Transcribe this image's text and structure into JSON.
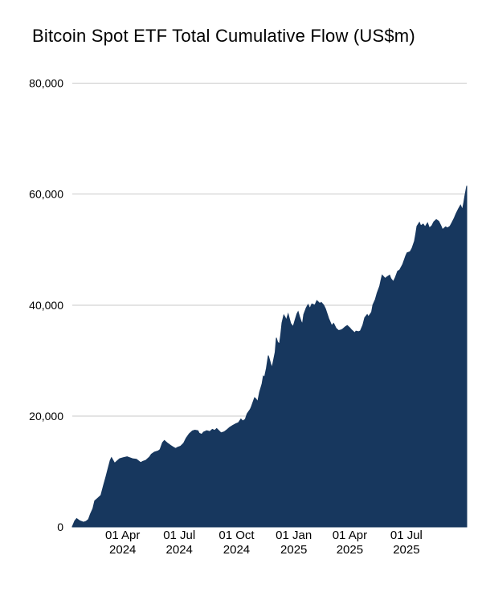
{
  "chart": {
    "title": "Bitcoin Spot ETF Total Cumulative Flow (US$m)"
  },
  "style": {
    "area_fill": "#17375E",
    "grid_color": "#C9C9C9",
    "text_color": "#000000",
    "background": "#FFFFFF"
  },
  "chart_data": {
    "type": "area",
    "title": "Bitcoin Spot ETF Total Cumulative Flow (US$m)",
    "xlabel": "",
    "ylabel": "",
    "legend": "none",
    "grid": "horizontal",
    "ylim": [
      0,
      80000
    ],
    "y_ticks": [
      0,
      20000,
      40000,
      60000,
      80000
    ],
    "y_tick_labels": [
      "0",
      "20,000",
      "40,000",
      "60,000",
      "80,000"
    ],
    "x_domain": [
      "2024-01-11",
      "2025-10-06"
    ],
    "x_ticks": [
      {
        "date": "2024-04-01",
        "label_line1": "01 Apr",
        "label_line2": "2024"
      },
      {
        "date": "2024-07-01",
        "label_line1": "01 Jul",
        "label_line2": "2024"
      },
      {
        "date": "2024-10-01",
        "label_line1": "01 Oct",
        "label_line2": "2024"
      },
      {
        "date": "2025-01-01",
        "label_line1": "01 Jan",
        "label_line2": "2025"
      },
      {
        "date": "2025-04-01",
        "label_line1": "01 Apr",
        "label_line2": "2025"
      },
      {
        "date": "2025-07-01",
        "label_line1": "01 Jul",
        "label_line2": "2025"
      }
    ],
    "series": [
      {
        "name": "Total Cumulative Flow (US$m)",
        "color": "#17375E",
        "points": [
          [
            "2024-01-11",
            50
          ],
          [
            "2024-01-15",
            1100
          ],
          [
            "2024-01-18",
            1500
          ],
          [
            "2024-01-23",
            1100
          ],
          [
            "2024-01-29",
            850
          ],
          [
            "2024-02-02",
            1000
          ],
          [
            "2024-02-06",
            1350
          ],
          [
            "2024-02-09",
            2300
          ],
          [
            "2024-02-13",
            3300
          ],
          [
            "2024-02-16",
            4700
          ],
          [
            "2024-02-21",
            5200
          ],
          [
            "2024-02-26",
            5700
          ],
          [
            "2024-03-01",
            7400
          ],
          [
            "2024-03-05",
            9000
          ],
          [
            "2024-03-08",
            10300
          ],
          [
            "2024-03-12",
            12000
          ],
          [
            "2024-03-14",
            12500
          ],
          [
            "2024-03-19",
            11500
          ],
          [
            "2024-03-22",
            11800
          ],
          [
            "2024-03-27",
            12300
          ],
          [
            "2024-04-02",
            12500
          ],
          [
            "2024-04-08",
            12650
          ],
          [
            "2024-04-12",
            12500
          ],
          [
            "2024-04-17",
            12300
          ],
          [
            "2024-04-23",
            12200
          ],
          [
            "2024-04-30",
            11600
          ],
          [
            "2024-05-03",
            11800
          ],
          [
            "2024-05-08",
            12000
          ],
          [
            "2024-05-14",
            12600
          ],
          [
            "2024-05-17",
            13100
          ],
          [
            "2024-05-22",
            13500
          ],
          [
            "2024-05-28",
            13700
          ],
          [
            "2024-05-31",
            13950
          ],
          [
            "2024-06-04",
            15200
          ],
          [
            "2024-06-07",
            15600
          ],
          [
            "2024-06-12",
            15100
          ],
          [
            "2024-06-17",
            14700
          ],
          [
            "2024-06-21",
            14400
          ],
          [
            "2024-06-25",
            14150
          ],
          [
            "2024-06-28",
            14350
          ],
          [
            "2024-07-03",
            14550
          ],
          [
            "2024-07-08",
            15100
          ],
          [
            "2024-07-12",
            16000
          ],
          [
            "2024-07-17",
            16800
          ],
          [
            "2024-07-22",
            17300
          ],
          [
            "2024-07-26",
            17450
          ],
          [
            "2024-07-31",
            17350
          ],
          [
            "2024-08-02",
            16900
          ],
          [
            "2024-08-06",
            16700
          ],
          [
            "2024-08-09",
            17100
          ],
          [
            "2024-08-14",
            17350
          ],
          [
            "2024-08-19",
            17200
          ],
          [
            "2024-08-23",
            17600
          ],
          [
            "2024-08-27",
            17400
          ],
          [
            "2024-08-30",
            17750
          ],
          [
            "2024-09-04",
            17200
          ],
          [
            "2024-09-06",
            16950
          ],
          [
            "2024-09-11",
            17150
          ],
          [
            "2024-09-16",
            17550
          ],
          [
            "2024-09-20",
            17950
          ],
          [
            "2024-09-25",
            18300
          ],
          [
            "2024-09-30",
            18600
          ],
          [
            "2024-10-04",
            18800
          ],
          [
            "2024-10-08",
            19450
          ],
          [
            "2024-10-11",
            19100
          ],
          [
            "2024-10-15",
            19400
          ],
          [
            "2024-10-18",
            20400
          ],
          [
            "2024-10-23",
            21200
          ],
          [
            "2024-10-25",
            21700
          ],
          [
            "2024-10-30",
            23300
          ],
          [
            "2024-11-01",
            23100
          ],
          [
            "2024-11-04",
            22600
          ],
          [
            "2024-11-07",
            24300
          ],
          [
            "2024-11-11",
            25800
          ],
          [
            "2024-11-13",
            27200
          ],
          [
            "2024-11-15",
            27000
          ],
          [
            "2024-11-18",
            28600
          ],
          [
            "2024-11-21",
            30900
          ],
          [
            "2024-11-25",
            29400
          ],
          [
            "2024-11-27",
            28700
          ],
          [
            "2024-12-02",
            31500
          ],
          [
            "2024-12-04",
            34100
          ],
          [
            "2024-12-06",
            33300
          ],
          [
            "2024-12-09",
            33000
          ],
          [
            "2024-12-11",
            34600
          ],
          [
            "2024-12-13",
            36800
          ],
          [
            "2024-12-16",
            38200
          ],
          [
            "2024-12-18",
            37800
          ],
          [
            "2024-12-20",
            37300
          ],
          [
            "2024-12-23",
            38400
          ],
          [
            "2024-12-27",
            36700
          ],
          [
            "2024-12-31",
            36100
          ],
          [
            "2025-01-03",
            37300
          ],
          [
            "2025-01-06",
            38400
          ],
          [
            "2025-01-08",
            38800
          ],
          [
            "2025-01-10",
            38000
          ],
          [
            "2025-01-13",
            37000
          ],
          [
            "2025-01-15",
            36600
          ],
          [
            "2025-01-17",
            38300
          ],
          [
            "2025-01-21",
            39500
          ],
          [
            "2025-01-24",
            40100
          ],
          [
            "2025-01-27",
            39400
          ],
          [
            "2025-01-30",
            40200
          ],
          [
            "2025-02-04",
            40000
          ],
          [
            "2025-02-07",
            40800
          ],
          [
            "2025-02-12",
            40300
          ],
          [
            "2025-02-14",
            40500
          ],
          [
            "2025-02-18",
            40000
          ],
          [
            "2025-02-21",
            39300
          ],
          [
            "2025-02-26",
            37600
          ],
          [
            "2025-03-03",
            36300
          ],
          [
            "2025-03-06",
            36700
          ],
          [
            "2025-03-10",
            35800
          ],
          [
            "2025-03-14",
            35400
          ],
          [
            "2025-03-18",
            35500
          ],
          [
            "2025-03-21",
            35700
          ],
          [
            "2025-03-25",
            36100
          ],
          [
            "2025-03-28",
            36300
          ],
          [
            "2025-04-01",
            35900
          ],
          [
            "2025-04-04",
            35500
          ],
          [
            "2025-04-09",
            35000
          ],
          [
            "2025-04-11",
            35300
          ],
          [
            "2025-04-15",
            35200
          ],
          [
            "2025-04-18",
            35350
          ],
          [
            "2025-04-22",
            36400
          ],
          [
            "2025-04-25",
            37700
          ],
          [
            "2025-04-29",
            38300
          ],
          [
            "2025-05-01",
            37900
          ],
          [
            "2025-05-06",
            38700
          ],
          [
            "2025-05-08",
            40000
          ],
          [
            "2025-05-12",
            41000
          ],
          [
            "2025-05-15",
            42200
          ],
          [
            "2025-05-19",
            43400
          ],
          [
            "2025-05-21",
            44400
          ],
          [
            "2025-05-23",
            45400
          ],
          [
            "2025-05-28",
            44800
          ],
          [
            "2025-05-30",
            45000
          ],
          [
            "2025-06-04",
            45400
          ],
          [
            "2025-06-06",
            44800
          ],
          [
            "2025-06-10",
            44200
          ],
          [
            "2025-06-13",
            44900
          ],
          [
            "2025-06-17",
            46100
          ],
          [
            "2025-06-20",
            46300
          ],
          [
            "2025-06-25",
            47300
          ],
          [
            "2025-06-30",
            48900
          ],
          [
            "2025-07-02",
            49400
          ],
          [
            "2025-07-07",
            49600
          ],
          [
            "2025-07-10",
            50200
          ],
          [
            "2025-07-14",
            51500
          ],
          [
            "2025-07-16",
            52800
          ],
          [
            "2025-07-18",
            54200
          ],
          [
            "2025-07-22",
            54900
          ],
          [
            "2025-07-24",
            54300
          ],
          [
            "2025-07-28",
            54600
          ],
          [
            "2025-07-31",
            54100
          ],
          [
            "2025-08-04",
            54800
          ],
          [
            "2025-08-07",
            53900
          ],
          [
            "2025-08-11",
            54300
          ],
          [
            "2025-08-14",
            55000
          ],
          [
            "2025-08-18",
            55400
          ],
          [
            "2025-08-22",
            55100
          ],
          [
            "2025-08-26",
            54200
          ],
          [
            "2025-08-28",
            53600
          ],
          [
            "2025-09-02",
            54100
          ],
          [
            "2025-09-05",
            53900
          ],
          [
            "2025-09-09",
            54200
          ],
          [
            "2025-09-12",
            54800
          ],
          [
            "2025-09-16",
            55700
          ],
          [
            "2025-09-19",
            56500
          ],
          [
            "2025-09-23",
            57400
          ],
          [
            "2025-09-26",
            58000
          ],
          [
            "2025-09-29",
            57200
          ],
          [
            "2025-10-01",
            58300
          ],
          [
            "2025-10-03",
            59700
          ],
          [
            "2025-10-06",
            61500
          ]
        ]
      }
    ]
  }
}
